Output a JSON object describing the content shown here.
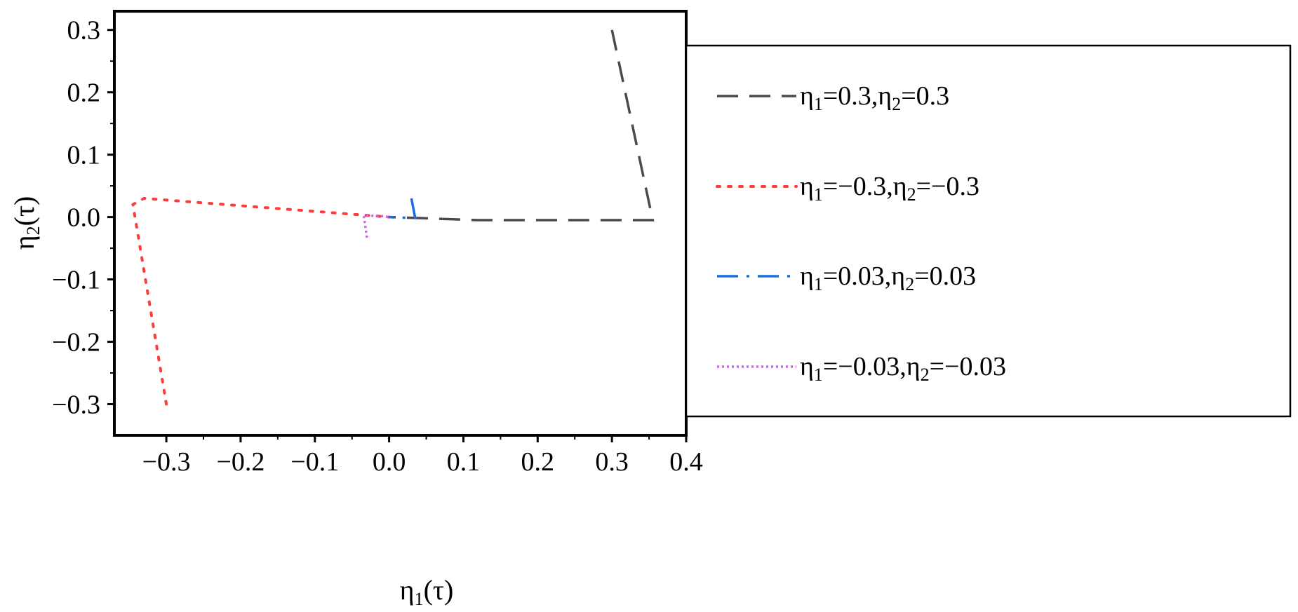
{
  "chart_data": {
    "type": "line",
    "title": "",
    "xlabel": "η1(τ)",
    "ylabel": "η2(τ)",
    "xlim": [
      -0.37,
      0.4
    ],
    "ylim": [
      -0.35,
      0.33
    ],
    "xticks": [
      -0.3,
      -0.2,
      -0.1,
      0.0,
      0.1,
      0.2,
      0.3,
      0.4
    ],
    "yticks": [
      -0.3,
      -0.2,
      -0.1,
      0.0,
      0.1,
      0.2,
      0.3
    ],
    "xtick_labels": [
      "−0.3",
      "−0.2",
      "−0.1",
      "0.0",
      "0.1",
      "0.2",
      "0.3",
      "0.4"
    ],
    "ytick_labels": [
      "−0.3",
      "−0.2",
      "−0.1",
      "0.0",
      "0.1",
      "0.2",
      "0.3"
    ],
    "grid": false,
    "legend_position": "right, outside plot area",
    "series": [
      {
        "name": "η1=0.3,η2=0.3",
        "color": "#4a4a4a",
        "style": "dashed",
        "x": [
          0.3,
          0.355,
          0.12,
          0.0
        ],
        "y": [
          0.3,
          -0.005,
          -0.005,
          0.0
        ]
      },
      {
        "name": "η1=−0.3,η2=−0.3",
        "color": "#ff3b3b",
        "style": "dotted",
        "x": [
          -0.3,
          -0.345,
          -0.33,
          0.0
        ],
        "y": [
          -0.3,
          0.02,
          0.03,
          0.0
        ]
      },
      {
        "name": "η1=0.03,η2=0.03",
        "color": "#1a6fe0",
        "style": "dash-dot",
        "x": [
          0.03,
          0.035,
          0.012,
          0.0
        ],
        "y": [
          0.03,
          -0.001,
          -0.001,
          0.0
        ]
      },
      {
        "name": "η1=−0.03,η2=−0.03",
        "color": "#cc66ee",
        "style": "short-dot",
        "x": [
          -0.03,
          -0.034,
          -0.013,
          0.0
        ],
        "y": [
          -0.033,
          0.002,
          0.002,
          0.0
        ]
      }
    ],
    "legend_entries": [
      {
        "sub1": "1",
        "sub2": "2",
        "v1": "0.3",
        "v2": "0.3"
      },
      {
        "sub1": "1",
        "sub2": "2",
        "v1": "−0.3",
        "v2": "−0.3"
      },
      {
        "sub1": "1",
        "sub2": "2",
        "v1": "0.03",
        "v2": "0.03"
      },
      {
        "sub1": "1",
        "sub2": "2",
        "v1": "−0.03",
        "v2": "−0.03"
      }
    ]
  }
}
